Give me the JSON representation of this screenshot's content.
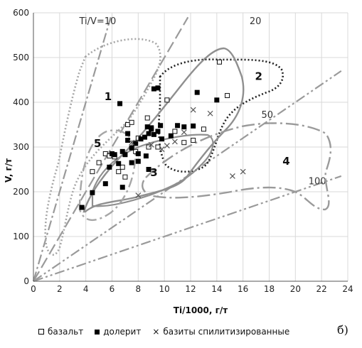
{
  "chart_data": {
    "type": "scatter",
    "xlabel": "Ti/1000, г/т",
    "ylabel": "V, г/т",
    "xlim": [
      0,
      24
    ],
    "ylim": [
      0,
      600
    ],
    "xticks": [
      0,
      2,
      4,
      6,
      8,
      10,
      12,
      14,
      16,
      18,
      20,
      22,
      24
    ],
    "yticks": [
      0,
      100,
      200,
      300,
      400,
      500,
      600
    ],
    "grid": true,
    "ratio_lines": [
      {
        "label": "Ti/V=10",
        "slope": 100
      },
      {
        "label": "20",
        "slope": 50
      },
      {
        "label": "50",
        "slope": 20
      },
      {
        "label": "100",
        "slope": 10
      }
    ],
    "fields": [
      {
        "label": "1",
        "x": 5.7,
        "y": 405
      },
      {
        "label": "2",
        "x": 17.2,
        "y": 450
      },
      {
        "label": "3",
        "x": 9.2,
        "y": 235
      },
      {
        "label": "4",
        "x": 19.3,
        "y": 260
      },
      {
        "label": "5",
        "x": 4.9,
        "y": 300
      }
    ],
    "series": [
      {
        "name": "базальт",
        "marker": "open-square",
        "points": [
          [
            4.5,
            245
          ],
          [
            5.0,
            265
          ],
          [
            5.5,
            285
          ],
          [
            5.8,
            280
          ],
          [
            6.2,
            278
          ],
          [
            6.8,
            255
          ],
          [
            7.2,
            350
          ],
          [
            7.5,
            355
          ],
          [
            7.8,
            290
          ],
          [
            8.0,
            320
          ],
          [
            8.7,
            365
          ],
          [
            8.8,
            300
          ],
          [
            9.5,
            300
          ],
          [
            10.2,
            405
          ],
          [
            10.8,
            335
          ],
          [
            11.5,
            310
          ],
          [
            12.2,
            315
          ],
          [
            13.0,
            340
          ],
          [
            14.2,
            490
          ],
          [
            14.8,
            415
          ],
          [
            6.5,
            245
          ],
          [
            7.0,
            233
          ]
        ]
      },
      {
        "name": "долерит",
        "marker": "filled-square",
        "points": [
          [
            3.7,
            165
          ],
          [
            4.5,
            198
          ],
          [
            5.5,
            218
          ],
          [
            5.8,
            255
          ],
          [
            6.0,
            285
          ],
          [
            6.2,
            283
          ],
          [
            6.5,
            263
          ],
          [
            6.8,
            290
          ],
          [
            7.0,
            283
          ],
          [
            7.2,
            315
          ],
          [
            7.5,
            298
          ],
          [
            7.5,
            265
          ],
          [
            7.8,
            308
          ],
          [
            8.0,
            268
          ],
          [
            8.2,
            318
          ],
          [
            8.5,
            322
          ],
          [
            8.7,
            345
          ],
          [
            8.8,
            330
          ],
          [
            9.0,
            343
          ],
          [
            9.2,
            328
          ],
          [
            9.5,
            335
          ],
          [
            9.7,
            348
          ],
          [
            9.8,
            318
          ],
          [
            9.2,
            430
          ],
          [
            9.5,
            432
          ],
          [
            6.6,
            397
          ],
          [
            8.0,
            285
          ],
          [
            8.6,
            280
          ],
          [
            9.0,
            340
          ],
          [
            10.5,
            325
          ],
          [
            11.0,
            348
          ],
          [
            11.5,
            345
          ],
          [
            12.2,
            347
          ],
          [
            12.5,
            422
          ],
          [
            14.0,
            405
          ],
          [
            6.8,
            210
          ],
          [
            7.2,
            330
          ],
          [
            8.8,
            250
          ]
        ]
      },
      {
        "name": "базиты спилитизированные",
        "marker": "cross",
        "points": [
          [
            8.0,
            192
          ],
          [
            7.5,
            310
          ],
          [
            9.0,
            305
          ],
          [
            9.8,
            295
          ],
          [
            10.2,
            303
          ],
          [
            10.8,
            312
          ],
          [
            11.5,
            333
          ],
          [
            12.2,
            383
          ],
          [
            13.5,
            375
          ],
          [
            15.2,
            235
          ],
          [
            16.0,
            245
          ]
        ]
      }
    ]
  },
  "legend": {
    "items": [
      {
        "label": "базальт"
      },
      {
        "label": "долерит"
      },
      {
        "label": "базиты спилитизированные"
      }
    ],
    "panel_label": "б)"
  }
}
